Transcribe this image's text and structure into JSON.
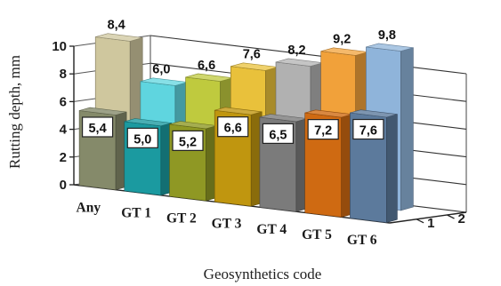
{
  "chart_data": {
    "type": "bar",
    "view": "3d",
    "title": "",
    "xlabel": "Geosynthetics code",
    "ylabel": "Rutting depth, mm",
    "ylim": [
      0,
      10
    ],
    "yticks": [
      "0",
      "2",
      "4",
      "6",
      "8",
      "10"
    ],
    "depth_labels": [
      "1",
      "2"
    ],
    "categories": [
      "Any",
      "GT 1",
      "GT 2",
      "GT 3",
      "GT 4",
      "GT 5",
      "GT 6"
    ],
    "series": [
      {
        "values": [
          5.4,
          5.0,
          5.2,
          6.6,
          6.5,
          7.2,
          7.6
        ],
        "value_labels": [
          "5,4",
          "5,0",
          "5,2",
          "6,6",
          "6,5",
          "7,2",
          "7,6"
        ]
      },
      {
        "values": [
          8.4,
          6.0,
          6.6,
          7.6,
          8.2,
          9.2,
          9.8
        ],
        "value_labels": [
          "8,4",
          "6,0",
          "6,6",
          "7,6",
          "8,2",
          "9,2",
          "9,8"
        ]
      }
    ],
    "colors": {
      "front": [
        "#858a6a",
        "#1b9aa0",
        "#8f9824",
        "#c0960f",
        "#7b7b7b",
        "#cf6a12",
        "#5c7a9c"
      ],
      "back": [
        "#cfc79e",
        "#5fd5df",
        "#bfca3e",
        "#e9c13b",
        "#b1b1b1",
        "#f1a13a",
        "#8fb4da"
      ]
    },
    "grid": true,
    "legend": "none"
  }
}
